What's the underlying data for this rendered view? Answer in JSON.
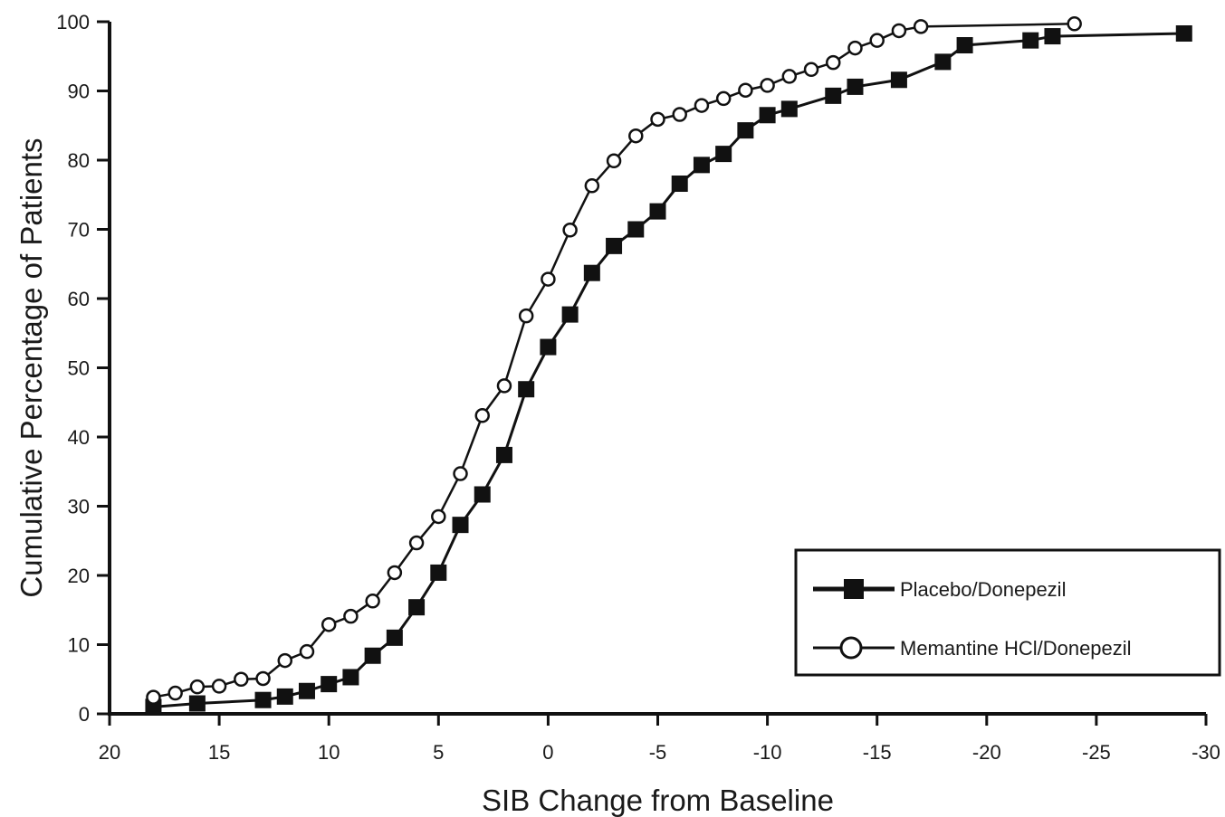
{
  "chart_data": {
    "type": "line",
    "title": "",
    "xlabel": "SIB Change from Baseline",
    "ylabel": "Cumulative Percentage of Patients",
    "xlim": [
      20,
      -30
    ],
    "ylim": [
      0,
      100
    ],
    "x_ticks": [
      20,
      15,
      10,
      5,
      0,
      -5,
      -10,
      -15,
      -20,
      -25,
      -30
    ],
    "x_tick_labels": [
      "20",
      "15",
      "10",
      "5",
      "0",
      "-5",
      "-10",
      "-15",
      "-20",
      "-25",
      "-30"
    ],
    "y_ticks": [
      0,
      10,
      20,
      30,
      40,
      50,
      60,
      70,
      80,
      90,
      100
    ],
    "y_tick_labels": [
      "0",
      "10",
      "20",
      "30",
      "40",
      "50",
      "60",
      "70",
      "80",
      "90",
      "100"
    ],
    "grid": false,
    "legend_position": "bottom-right",
    "series": [
      {
        "name": "Placebo/Donepezil",
        "marker": "filled-square",
        "color": "#111111",
        "x": [
          18,
          16,
          13,
          12,
          11,
          10,
          9,
          8,
          7,
          6,
          5,
          4,
          3,
          2,
          1,
          0,
          -1,
          -2,
          -3,
          -4,
          -5,
          -6,
          -7,
          -8,
          -9,
          -10,
          -11,
          -13,
          -14,
          -16,
          -18,
          -19,
          -22,
          -23,
          -29
        ],
        "y": [
          1,
          1.5,
          2,
          2.5,
          3.3,
          4.3,
          5.3,
          8.4,
          11,
          15.4,
          20.4,
          27.3,
          31.7,
          37.4,
          46.9,
          53,
          57.7,
          63.7,
          67.6,
          70,
          72.6,
          76.6,
          79.3,
          80.9,
          84.3,
          86.5,
          87.4,
          89.3,
          90.6,
          91.6,
          94.2,
          96.6,
          97.3,
          97.9,
          98.3
        ]
      },
      {
        "name": "Memantine HCl/Donepezil",
        "marker": "open-circle",
        "color": "#111111",
        "x": [
          18,
          17,
          16,
          15,
          14,
          13,
          12,
          11,
          10,
          9,
          8,
          7,
          6,
          5,
          4,
          3,
          2,
          1,
          0,
          -1,
          -2,
          -3,
          -4,
          -5,
          -6,
          -7,
          -8,
          -9,
          -10,
          -11,
          -12,
          -13,
          -14,
          -15,
          -16,
          -17,
          -24
        ],
        "y": [
          2.4,
          3,
          3.9,
          4,
          5,
          5.1,
          7.7,
          9,
          12.9,
          14.1,
          16.3,
          20.4,
          24.7,
          28.5,
          34.7,
          43.1,
          47.4,
          57.5,
          62.8,
          69.9,
          76.3,
          79.9,
          83.5,
          85.9,
          86.6,
          87.9,
          88.9,
          90.1,
          90.8,
          92.1,
          93.1,
          94.1,
          96.2,
          97.3,
          98.7,
          99.3,
          99.7
        ]
      }
    ]
  }
}
